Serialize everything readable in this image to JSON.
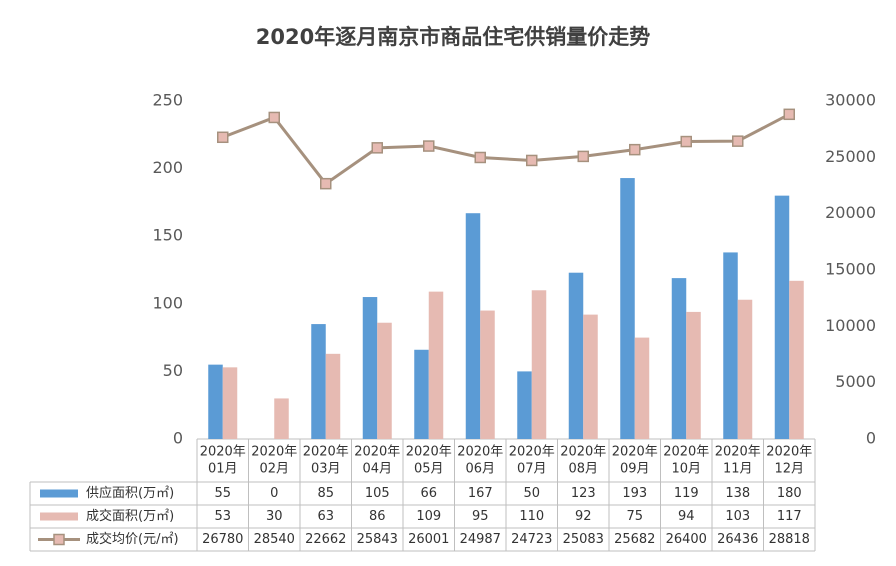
{
  "chart_data": {
    "type": "bar",
    "title": "2020年逐月南京市商品住宅供销量价走势",
    "categories": [
      [
        "2020年",
        "01月"
      ],
      [
        "2020年",
        "02月"
      ],
      [
        "2020年",
        "03月"
      ],
      [
        "2020年",
        "04月"
      ],
      [
        "2020年",
        "05月"
      ],
      [
        "2020年",
        "06月"
      ],
      [
        "2020年",
        "07月"
      ],
      [
        "2020年",
        "08月"
      ],
      [
        "2020年",
        "09月"
      ],
      [
        "2020年",
        "10月"
      ],
      [
        "2020年",
        "11月"
      ],
      [
        "2020年",
        "12月"
      ]
    ],
    "series": [
      {
        "name": "供应面积(万㎡)",
        "color": "#5b9bd5",
        "type": "bar",
        "values": [
          55,
          0,
          85,
          105,
          66,
          167,
          50,
          123,
          193,
          119,
          138,
          180
        ]
      },
      {
        "name": "成交面积(万㎡)",
        "color": "#e6bab2",
        "type": "bar",
        "values": [
          53,
          30,
          63,
          86,
          109,
          95,
          110,
          92,
          75,
          94,
          103,
          117
        ]
      },
      {
        "name": "成交均价(元/㎡)",
        "color": "#a6917e",
        "type": "line",
        "axis": "y2",
        "values": [
          26780,
          28540,
          22662,
          25843,
          26001,
          24987,
          24723,
          25083,
          25682,
          26400,
          26436,
          28818
        ]
      }
    ],
    "ylim": [
      0,
      250
    ],
    "yticks": [
      0,
      50,
      100,
      150,
      200,
      250
    ],
    "y2lim": [
      0,
      30000
    ],
    "y2ticks": [
      0,
      5000,
      10000,
      15000,
      20000,
      25000,
      30000
    ]
  }
}
